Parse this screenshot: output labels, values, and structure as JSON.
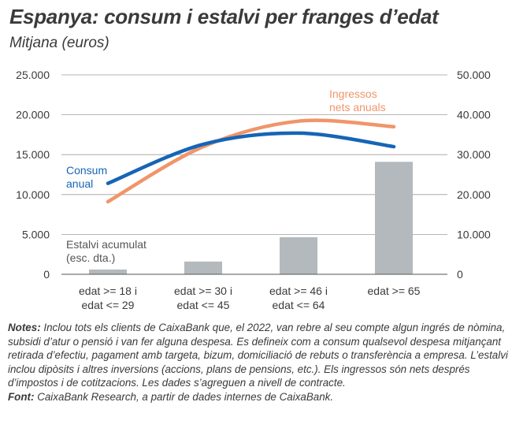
{
  "header": {
    "title": "Espanya: consum i estalvi per franges d’edat",
    "subtitle": "Mitjana (euros)"
  },
  "colors": {
    "consum": "#1565b6",
    "ingressos": "#f0956a",
    "estalvi": "#b3b9bd",
    "axis_text": "#3a3a3a",
    "grid": "#9e9e9e"
  },
  "chart_data": {
    "type": "bar+line",
    "categories": [
      "edat >= 18 i\nedat <= 29",
      "edat >= 30 i\nedat <= 45",
      "edat >= 46 i\nedat <= 64",
      "edat >= 65"
    ],
    "left_axis": {
      "ylim": [
        0,
        25000
      ],
      "ticks": [
        0,
        5000,
        10000,
        15000,
        20000,
        25000
      ],
      "tick_labels": [
        "0",
        "5.000",
        "10.000",
        "15.000",
        "20.000",
        "25.000"
      ]
    },
    "right_axis": {
      "ylim": [
        0,
        50000
      ],
      "ticks": [
        0,
        10000,
        20000,
        30000,
        40000,
        50000
      ],
      "tick_labels": [
        "0",
        "10.000",
        "20.000",
        "30.000",
        "40.000",
        "50.000"
      ]
    },
    "series": [
      {
        "name": "Consum anual",
        "type": "line",
        "axis": "left",
        "color": "#1565b6",
        "values": [
          11400,
          16300,
          17700,
          16000
        ]
      },
      {
        "name": "Ingressos nets anuals",
        "type": "line",
        "axis": "left",
        "color": "#f0956a",
        "values": [
          9100,
          16000,
          19200,
          18500
        ]
      },
      {
        "name": "Estalvi acumulat (esc. dta.)",
        "type": "bar",
        "axis": "right",
        "color": "#b3b9bd",
        "values": [
          1200,
          3200,
          9300,
          28200
        ]
      }
    ],
    "series_labels": {
      "consum": [
        "Consum",
        "anual"
      ],
      "ingressos": [
        "Ingressos",
        "nets anuals"
      ],
      "estalvi": [
        "Estalvi acumulat",
        "(esc. dta.)"
      ]
    },
    "legend": "inline labels"
  },
  "notes": {
    "notes_label": "Notes:",
    "notes_text": " Inclou tots els clients de CaixaBank que, el 2022, van rebre al seu compte algun ingrés de nòmina, subsidi d’atur o pensió i van fer alguna despesa. Es defineix com a consum qualsevol despesa mitjançant retirada d’efectiu, pagament amb targeta, bizum, domiciliació de rebuts o transferència a empresa. L’estalvi inclou dipòsits i altres inversions (accions, plans de pensions, etc.). Els ingressos són nets després d’impostos i de cotitzacions. Les dades s’agreguen a nivell de contracte.",
    "source_label": "Font:",
    "source_text": " CaixaBank Research, a partir de dades internes de CaixaBank."
  }
}
